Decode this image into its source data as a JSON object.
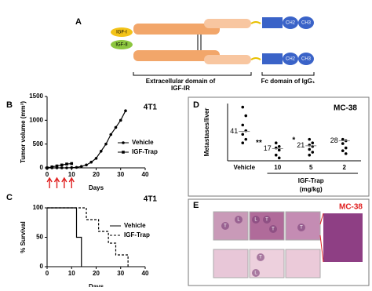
{
  "panel_a": {
    "label": "A",
    "ligands": [
      "IGF-I",
      "IGF-II"
    ],
    "domains": [
      "CH2",
      "CH3"
    ],
    "captions": [
      "Extracellular domain of IGF-IR",
      "Fc domain of IgG₁"
    ]
  },
  "chart_data": [
    {
      "type": "line",
      "label": "B",
      "title": "4T1",
      "xlabel": "Days",
      "ylabel": "Tumor volume (mm³)",
      "xlim": [
        0,
        40
      ],
      "xticks": [
        0,
        10,
        20,
        30,
        40
      ],
      "ylim": [
        0,
        1500
      ],
      "yticks": [
        0,
        500,
        1000,
        1500
      ],
      "legend": "right",
      "arrows": [
        1,
        4,
        7,
        10
      ],
      "arrow_color": "#e02020",
      "title_color": "#e02020",
      "series": [
        {
          "name": "Vehicle",
          "color": "#000000",
          "marker": "circle",
          "x": [
            0,
            2,
            4,
            6,
            8,
            10,
            12,
            14,
            16,
            18,
            20,
            22,
            24,
            26,
            28,
            30,
            32
          ],
          "values": [
            0,
            0,
            0,
            0,
            0,
            5,
            10,
            30,
            60,
            120,
            200,
            350,
            500,
            700,
            850,
            1000,
            1200
          ]
        },
        {
          "name": "IGF-Trap",
          "color": "#000000",
          "marker": "square",
          "x": [
            0,
            2,
            4,
            6,
            8,
            10
          ],
          "values": [
            0,
            20,
            40,
            60,
            80,
            90
          ]
        }
      ]
    },
    {
      "type": "line",
      "drawstyle": "steps-post",
      "label": "C",
      "title": "4T1",
      "xlabel": "Days",
      "ylabel": "% Survival",
      "xlim": [
        0,
        40
      ],
      "xticks": [
        0,
        10,
        20,
        30,
        40
      ],
      "ylim": [
        0,
        100
      ],
      "yticks": [
        0,
        50,
        100
      ],
      "legend": "right",
      "title_color": "#e02020",
      "series": [
        {
          "name": "Vehicle",
          "color": "#000000",
          "dash": false,
          "x": [
            0,
            12,
            14
          ],
          "values": [
            100,
            50,
            0
          ]
        },
        {
          "name": "IGF-Trap",
          "color": "#000000",
          "dash": true,
          "x": [
            0,
            16,
            21,
            25,
            28,
            33
          ],
          "values": [
            100,
            80,
            60,
            40,
            20,
            0
          ]
        }
      ]
    },
    {
      "type": "strip",
      "label": "D",
      "title": "MC-38",
      "title_color": "#e02020",
      "ylabel": "Metastases/liver",
      "xlabel": "IGF-Trap",
      "xlabel_unit": "(mg/kg)",
      "ylim": [
        0,
        80
      ],
      "categories": [
        "Vehicle",
        "10",
        "5",
        "2"
      ],
      "values": [
        41,
        17,
        21,
        28
      ],
      "significance": [
        null,
        "**",
        "*",
        null
      ],
      "points": [
        [
          75,
          63,
          50,
          42,
          37,
          30,
          25
        ],
        [
          25,
          20,
          18,
          15,
          8,
          4
        ],
        [
          30,
          25,
          22,
          20,
          16,
          12,
          8
        ],
        [
          30,
          28,
          24,
          18,
          14,
          10
        ]
      ]
    }
  ],
  "panel_e": {
    "label": "E",
    "title": "MC-38",
    "tiles": [
      [
        "T",
        "L"
      ],
      [
        "L",
        "T",
        "T"
      ],
      [
        "T"
      ],
      [],
      [
        "T",
        "L"
      ],
      [],
      []
    ]
  }
}
